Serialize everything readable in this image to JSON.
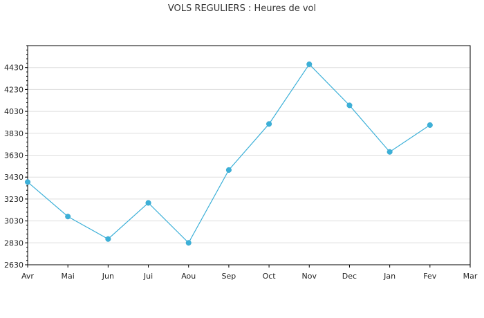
{
  "chart_data": {
    "type": "line",
    "title": "VOLS REGULIERS : Heures de vol",
    "xlabel": "",
    "ylabel": "",
    "categories": [
      "Avr",
      "Mai",
      "Jun",
      "Jui",
      "Aou",
      "Sep",
      "Oct",
      "Nov",
      "Dec",
      "Jan",
      "Fev",
      "Mar"
    ],
    "series": [
      {
        "values": [
          3385,
          3070,
          2865,
          3195,
          2830,
          3495,
          3915,
          4460,
          4085,
          3660,
          3905,
          null
        ]
      }
    ],
    "yticks": [
      2630,
      2830,
      3030,
      3230,
      3430,
      3630,
      3830,
      4030,
      4230,
      4430
    ],
    "ylim": [
      2630,
      4630
    ],
    "grid": true,
    "legend": "none",
    "colors": {
      "series": "#3cb0d8",
      "grid": "#dddddd",
      "axis": "#000000"
    }
  }
}
